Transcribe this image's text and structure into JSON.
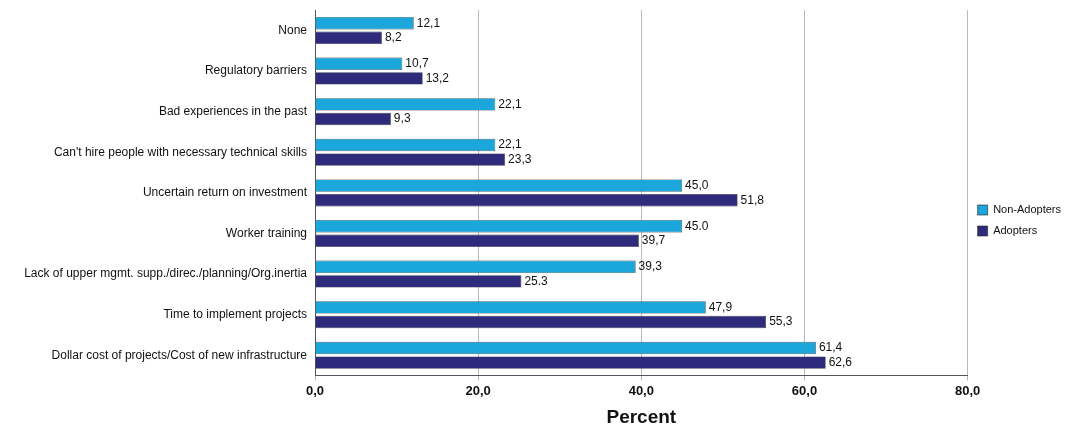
{
  "chart_data": {
    "type": "bar",
    "orientation": "horizontal",
    "xlabel": "Percent",
    "categories": [
      "None",
      "Regulatory barriers",
      "Bad experiences in the past",
      "Can't hire people with necessary technical skills",
      "Uncertain return on investment",
      "Worker training",
      "Lack of upper mgmt. supp./direc./planning/Org.inertia",
      "Time to implement projects",
      "Dollar cost of projects/Cost of new infrastructure"
    ],
    "series": [
      {
        "name": "Non-Adopters",
        "color": "#1ba6dc",
        "values": [
          12.1,
          10.7,
          22.1,
          22.1,
          45.0,
          45.0,
          39.3,
          47.9,
          61.4
        ],
        "value_labels": [
          "12,1",
          "10,7",
          "22,1",
          "22,1",
          "45,0",
          "45.0",
          "39,3",
          "47,9",
          "61,4"
        ]
      },
      {
        "name": "Adopters",
        "color": "#2f2b7c",
        "values": [
          8.2,
          13.2,
          9.3,
          23.3,
          51.8,
          39.7,
          25.3,
          55.3,
          62.6
        ],
        "value_labels": [
          "8,2",
          "13,2",
          "9,3",
          "23,3",
          "51,8",
          "39,7",
          "25.3",
          "55,3",
          "62,6"
        ]
      }
    ],
    "xlim": [
      0,
      80
    ],
    "xticks": [
      {
        "value": 0,
        "label": "0,0"
      },
      {
        "value": 20,
        "label": "20,0"
      },
      {
        "value": 40,
        "label": "40,0"
      },
      {
        "value": 60,
        "label": "60,0"
      },
      {
        "value": 80,
        "label": "80,0"
      }
    ],
    "grid": "x",
    "legend": "right"
  }
}
